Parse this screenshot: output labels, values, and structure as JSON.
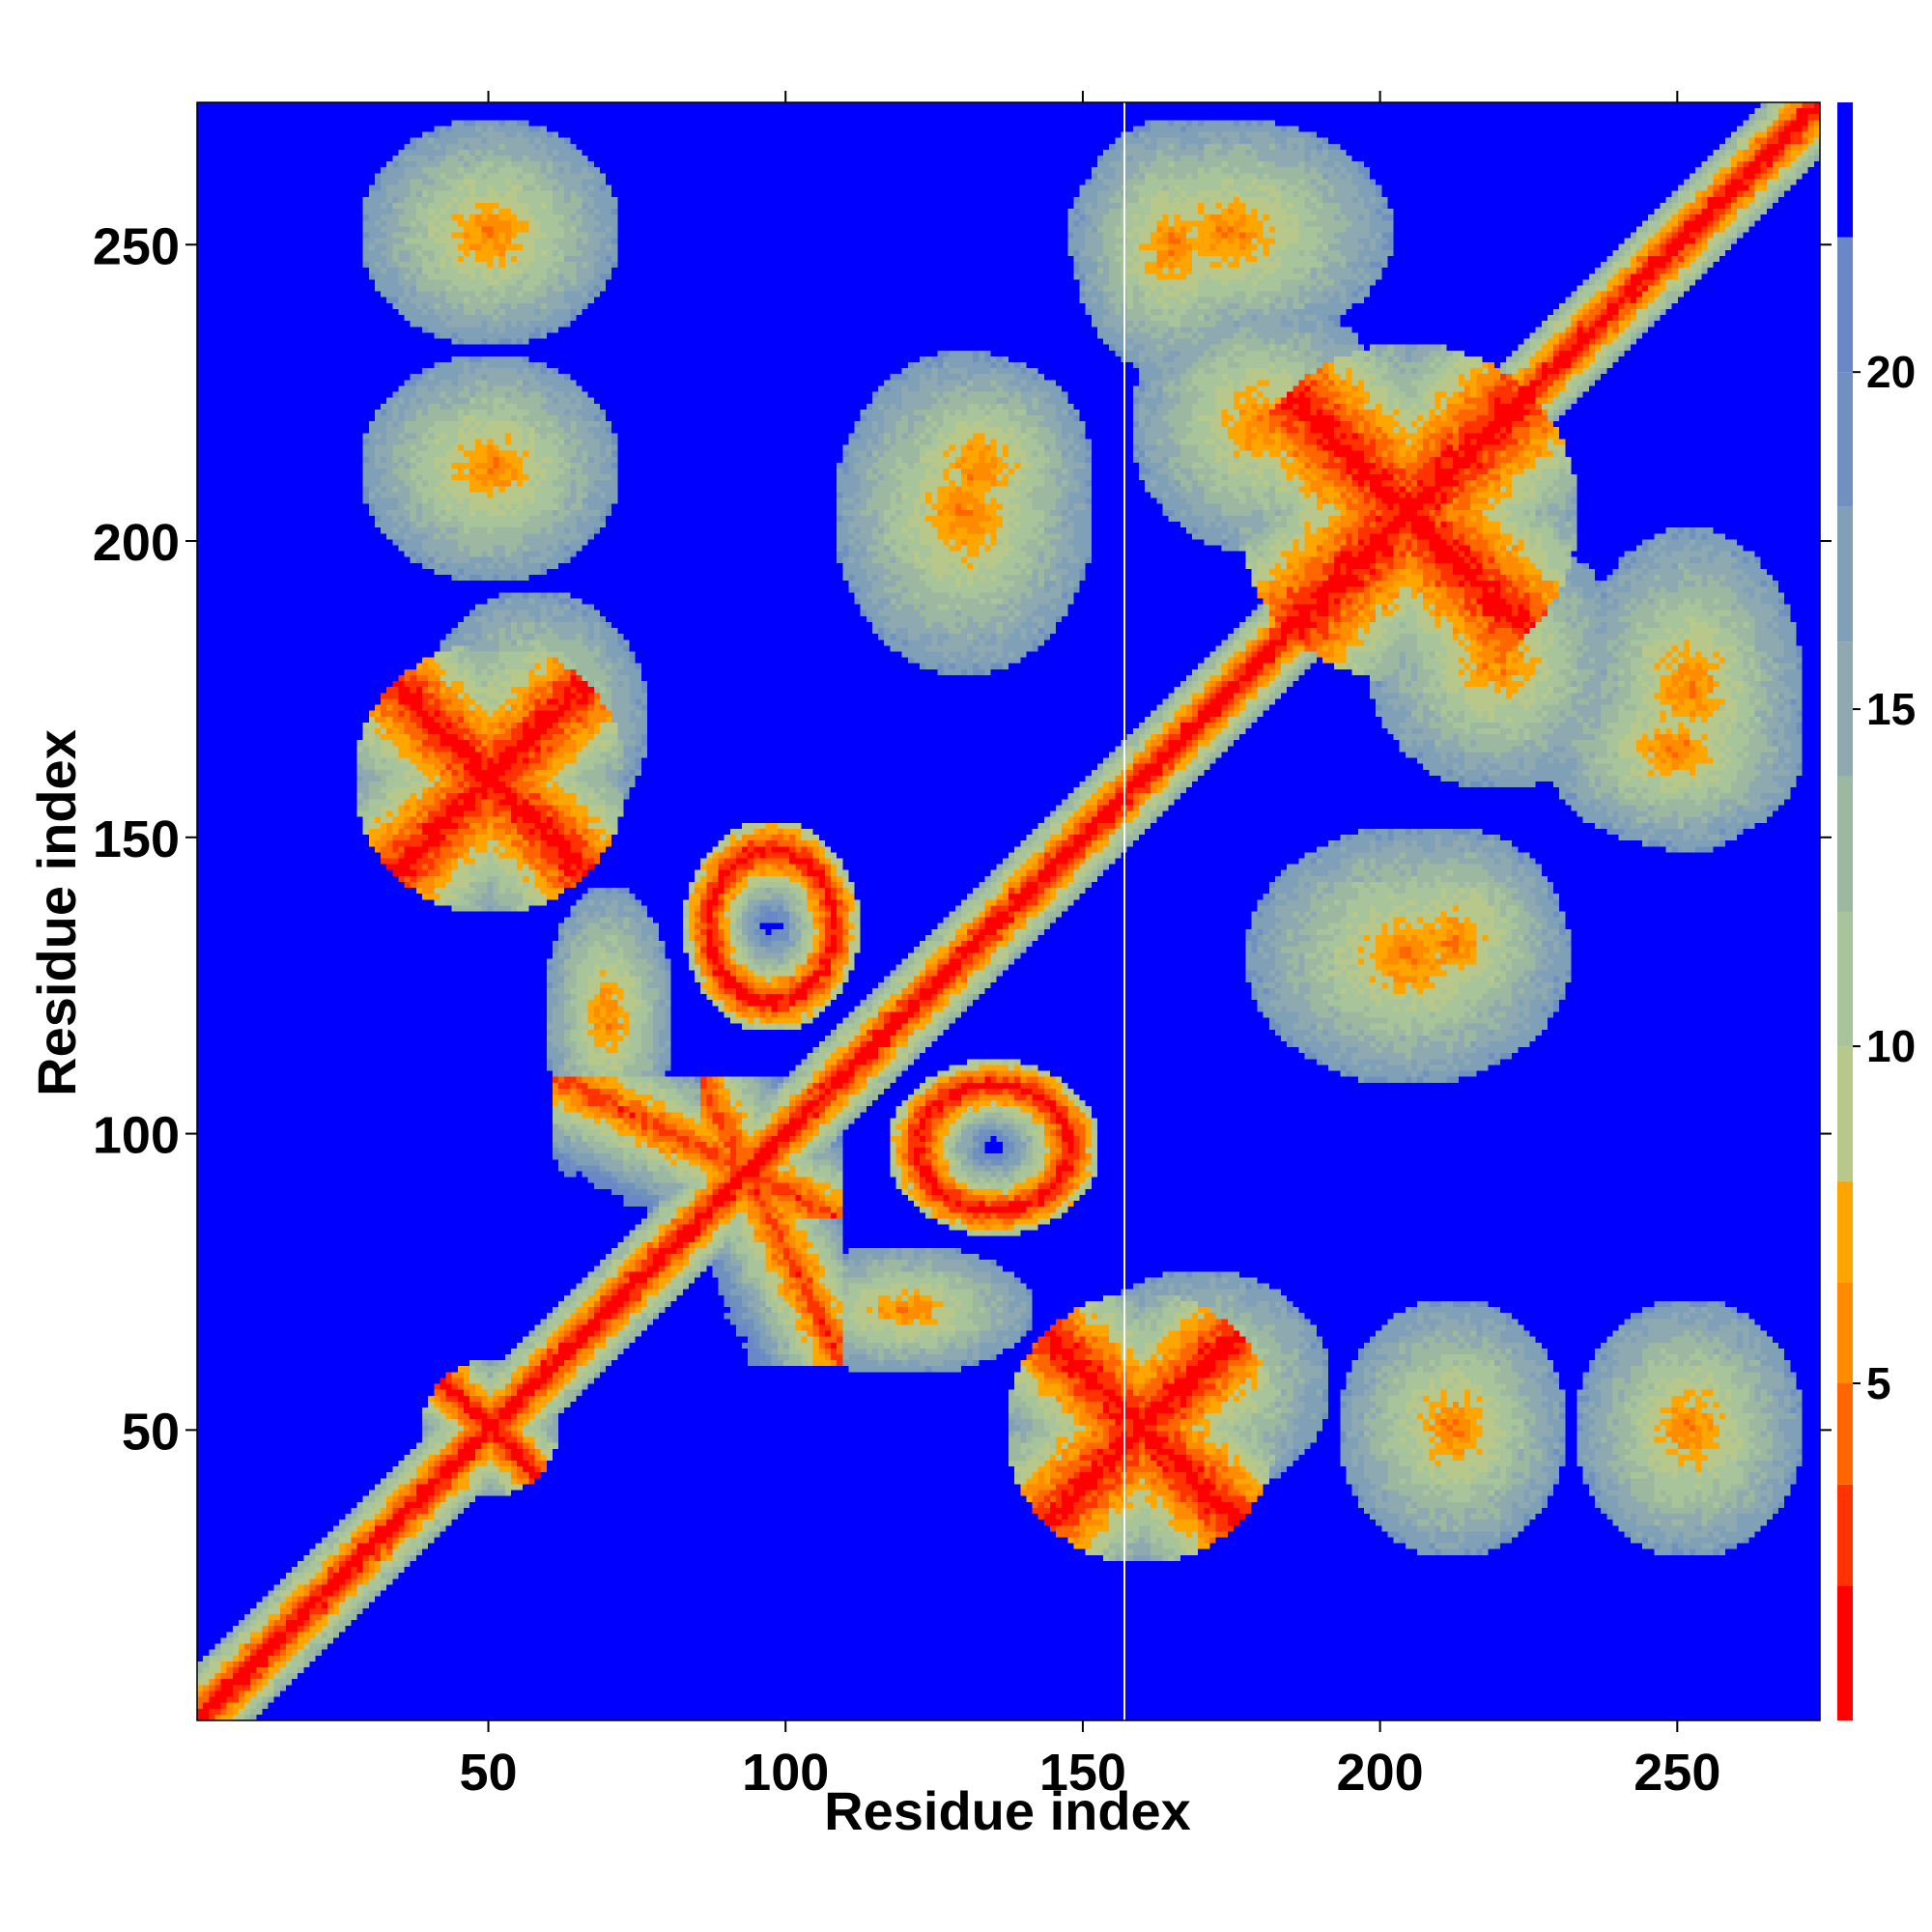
{
  "chart_data": {
    "type": "heatmap",
    "title": "",
    "xlabel": "Residue index",
    "ylabel": "Residue index",
    "xlim": [
      1,
      274
    ],
    "ylim": [
      1,
      274
    ],
    "xticks": [
      50,
      100,
      150,
      200,
      250
    ],
    "yticks": [
      50,
      100,
      150,
      200,
      250
    ],
    "grid": false,
    "colorbar": {
      "range": [
        0,
        24
      ],
      "ticks": [
        5,
        10,
        15,
        20
      ],
      "levels": [
        {
          "max": 2,
          "color": "#ff0000"
        },
        {
          "max": 3.5,
          "color": "#ff3300"
        },
        {
          "max": 5,
          "color": "#ff6600"
        },
        {
          "max": 6.5,
          "color": "#ff8c00"
        },
        {
          "max": 8,
          "color": "#ffa500"
        },
        {
          "max": 10,
          "color": "#b8c88a"
        },
        {
          "max": 12,
          "color": "#a8c49a"
        },
        {
          "max": 14,
          "color": "#9cb8a0"
        },
        {
          "max": 16,
          "color": "#8eaab0"
        },
        {
          "max": 18,
          "color": "#80a0b8"
        },
        {
          "max": 20,
          "color": "#7090c0"
        },
        {
          "max": 22,
          "color": "#6a88c8"
        },
        {
          "max": 24,
          "color": "#0000ff"
        }
      ]
    },
    "background_color": "#0000ff",
    "vertical_line_x": 157,
    "contact_regions": [
      {
        "i": [
          40,
          60
        ],
        "j": [
          40,
          60
        ],
        "type": "cross"
      },
      {
        "i": [
          85,
          110
        ],
        "j": [
          120,
          150
        ],
        "type": "ring"
      },
      {
        "i": [
          30,
          70
        ],
        "j": [
          140,
          180
        ],
        "type": "cross"
      },
      {
        "i": [
          180,
          230
        ],
        "j": [
          180,
          230
        ],
        "type": "cross"
      },
      {
        "i": [
          200,
          240
        ],
        "j": [
          160,
          200
        ],
        "type": "blob"
      },
      {
        "i": [
          30,
          70
        ],
        "j": [
          235,
          270
        ],
        "type": "blob"
      },
      {
        "i": [
          150,
          200
        ],
        "j": [
          235,
          270
        ],
        "type": "blob"
      },
      {
        "i": [
          60,
          110
        ],
        "j": [
          85,
          110
        ],
        "type": "band"
      },
      {
        "i": [
          150,
          190
        ],
        "j": [
          40,
          75
        ],
        "type": "blob"
      },
      {
        "i": [
          235,
          270
        ],
        "j": [
          30,
          70
        ],
        "type": "blob"
      },
      {
        "i": [
          115,
          150
        ],
        "j": [
          195,
          230
        ],
        "type": "blob"
      },
      {
        "i": [
          230,
          270
        ],
        "j": [
          150,
          180
        ],
        "type": "blob"
      },
      {
        "i": [
          30,
          70
        ],
        "j": [
          195,
          230
        ],
        "type": "blob"
      },
      {
        "i": [
          100,
          140
        ],
        "j": [
          60,
          80
        ],
        "type": "blob"
      },
      {
        "i": [
          180,
          230
        ],
        "j": [
          110,
          150
        ],
        "type": "blob"
      }
    ]
  }
}
